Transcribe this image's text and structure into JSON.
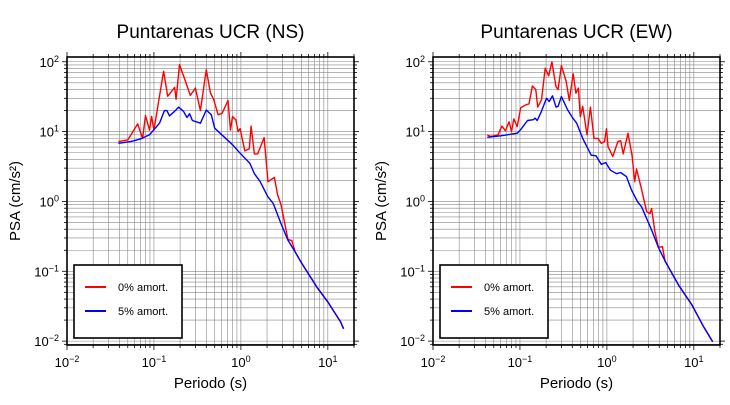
{
  "chart_data": [
    {
      "type": "line",
      "title": "Puntarenas UCR (NS)",
      "xlabel": "Periodo (s)",
      "ylabel": "PSA (cm/s²)",
      "xscale": "log",
      "yscale": "log",
      "xlim": [
        0.01,
        20
      ],
      "ylim": [
        0.0088,
        117
      ],
      "xticks": [
        {
          "base": "10",
          "exp": "−2",
          "v": 0.01
        },
        {
          "base": "10",
          "exp": "−1",
          "v": 0.1
        },
        {
          "base": "10",
          "exp": "0",
          "v": 1
        },
        {
          "base": "10",
          "exp": "1",
          "v": 10
        }
      ],
      "yticks": [
        {
          "base": "10",
          "exp": "−2",
          "v": 0.01
        },
        {
          "base": "10",
          "exp": "−1",
          "v": 0.1
        },
        {
          "base": "10",
          "exp": "0",
          "v": 1
        },
        {
          "base": "10",
          "exp": "1",
          "v": 10
        },
        {
          "base": "10",
          "exp": "2",
          "v": 100
        }
      ],
      "grid": true,
      "legend_position": "bottom-left",
      "series": [
        {
          "name": "0% amort.",
          "color": "#ff0000",
          "x": [
            0.039,
            0.05,
            0.065,
            0.074,
            0.08,
            0.089,
            0.094,
            0.1,
            0.129,
            0.144,
            0.173,
            0.18,
            0.197,
            0.231,
            0.262,
            0.3,
            0.342,
            0.4,
            0.446,
            0.488,
            0.547,
            0.608,
            0.71,
            0.76,
            0.8,
            0.875,
            0.93,
            0.98,
            1.11,
            1.25,
            1.31,
            1.43,
            1.56,
            1.85,
            2.05,
            2.43,
            2.65,
            2.9,
            3.47,
            3.68,
            3.85,
            4.2,
            5.0,
            7.5,
            10.2,
            14,
            15.2
          ],
          "y": [
            7.2,
            7.6,
            12.9,
            8.0,
            17,
            10.5,
            16.5,
            10.5,
            73,
            32,
            43,
            29,
            91,
            52,
            33,
            42,
            20,
            77,
            36,
            28.5,
            17.4,
            18.3,
            27.9,
            10.5,
            16.4,
            14.8,
            10,
            11,
            5.3,
            5.7,
            12,
            4.8,
            4.8,
            8.2,
            1.92,
            2.2,
            1.23,
            0.89,
            0.286,
            0.28,
            0.275,
            0.19,
            0.13,
            0.059,
            0.035,
            0.019,
            0.015
          ]
        },
        {
          "name": "5% amort.",
          "color": "#0000ff",
          "x": [
            0.039,
            0.054,
            0.071,
            0.089,
            0.116,
            0.132,
            0.141,
            0.151,
            0.173,
            0.192,
            0.219,
            0.24,
            0.257,
            0.277,
            0.342,
            0.4,
            0.457,
            0.5,
            0.8,
            0.98,
            1.27,
            1.43,
            1.66,
            2.04,
            2.36,
            2.88,
            3.47,
            4.2,
            5.0,
            7.5,
            10.2,
            14,
            15.2
          ],
          "y": [
            6.8,
            7.2,
            7.9,
            9.0,
            13.2,
            20,
            20,
            16.8,
            19.5,
            22.4,
            19.5,
            15.9,
            18,
            14.4,
            13.2,
            20.4,
            17.4,
            11.2,
            6.5,
            4.9,
            3.5,
            2.5,
            1.94,
            1.17,
            0.93,
            0.49,
            0.28,
            0.19,
            0.13,
            0.059,
            0.035,
            0.019,
            0.015
          ]
        }
      ]
    },
    {
      "type": "line",
      "title": "Puntarenas UCR (EW)",
      "xlabel": "Periodo (s)",
      "ylabel": "PSA (cm/s²)",
      "xscale": "log",
      "yscale": "log",
      "xlim": [
        0.01,
        20
      ],
      "ylim": [
        0.0088,
        117
      ],
      "xticks": [
        {
          "base": "10",
          "exp": "−2",
          "v": 0.01
        },
        {
          "base": "10",
          "exp": "−1",
          "v": 0.1
        },
        {
          "base": "10",
          "exp": "0",
          "v": 1
        },
        {
          "base": "10",
          "exp": "1",
          "v": 10
        }
      ],
      "yticks": [
        {
          "base": "10",
          "exp": "−2",
          "v": 0.01
        },
        {
          "base": "10",
          "exp": "−1",
          "v": 0.1
        },
        {
          "base": "10",
          "exp": "0",
          "v": 1
        },
        {
          "base": "10",
          "exp": "1",
          "v": 10
        },
        {
          "base": "10",
          "exp": "2",
          "v": 100
        }
      ],
      "grid": true,
      "legend_position": "bottom-left",
      "series": [
        {
          "name": "0% amort.",
          "color": "#ff0000",
          "x": [
            0.042,
            0.046,
            0.056,
            0.062,
            0.068,
            0.075,
            0.08,
            0.085,
            0.093,
            0.102,
            0.116,
            0.127,
            0.139,
            0.152,
            0.16,
            0.177,
            0.195,
            0.214,
            0.233,
            0.26,
            0.275,
            0.3,
            0.34,
            0.37,
            0.41,
            0.44,
            0.47,
            0.495,
            0.527,
            0.59,
            0.646,
            0.71,
            0.79,
            0.863,
            0.94,
            0.99,
            1.03,
            1.17,
            1.34,
            1.44,
            1.54,
            1.75,
            1.95,
            2.09,
            2.19,
            2.5,
            2.87,
            3.13,
            3.27,
            3.57,
            3.91,
            4.35,
            4.67,
            6.7,
            9.5,
            13,
            16.5
          ],
          "y": [
            9.0,
            8.5,
            9.0,
            12,
            10.3,
            13.8,
            10,
            15.2,
            11.8,
            22,
            24,
            25,
            45,
            40,
            22.4,
            28.5,
            81,
            63,
            100,
            44,
            40,
            88,
            52,
            28,
            67,
            35.5,
            42,
            16.4,
            23,
            9,
            22.4,
            8.0,
            8,
            6.8,
            7.2,
            11,
            6.1,
            4.4,
            7.2,
            7.4,
            4.8,
            9.5,
            4.5,
            1.92,
            2.9,
            1.5,
            0.71,
            0.67,
            0.79,
            0.37,
            0.22,
            0.225,
            0.14,
            0.063,
            0.033,
            0.016,
            0.0098
          ]
        },
        {
          "name": "5% amort.",
          "color": "#0000ff",
          "x": [
            0.042,
            0.06,
            0.093,
            0.102,
            0.122,
            0.143,
            0.149,
            0.158,
            0.174,
            0.202,
            0.217,
            0.237,
            0.26,
            0.275,
            0.3,
            0.354,
            0.405,
            0.45,
            0.527,
            0.66,
            0.75,
            0.86,
            0.97,
            1.1,
            1.29,
            1.44,
            1.68,
            1.92,
            2.25,
            2.5,
            3.27,
            3.91,
            4.67,
            6.7,
            9.5,
            13,
            16.5
          ],
          "y": [
            8.3,
            8.7,
            9.5,
            10.7,
            14.4,
            14.8,
            15.6,
            14.4,
            18.7,
            30,
            27,
            32.6,
            22.4,
            23,
            31.7,
            20.4,
            15.6,
            13.2,
            8.0,
            4.6,
            4.5,
            3.4,
            3.6,
            2.8,
            2.5,
            2.6,
            2.26,
            1.46,
            0.99,
            0.84,
            0.39,
            0.22,
            0.14,
            0.063,
            0.033,
            0.016,
            0.0098
          ]
        }
      ]
    }
  ]
}
